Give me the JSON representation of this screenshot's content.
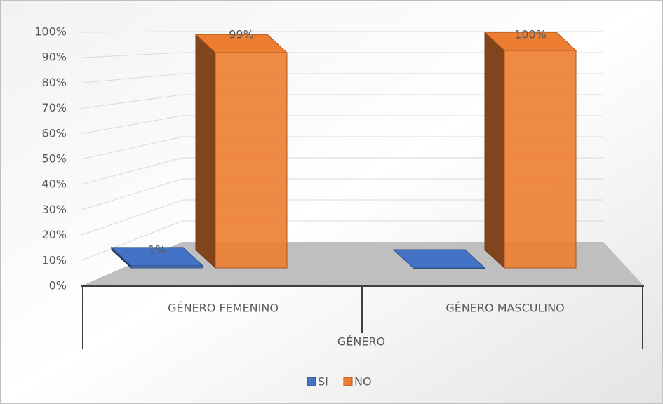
{
  "chart_data": {
    "type": "bar3d",
    "categories": [
      "GÉNERO FEMENINO",
      "GÉNERO MASCULINO"
    ],
    "x_label": "GÉNERO",
    "series": [
      {
        "name": "SI",
        "color": "#4472c4",
        "values": [
          1,
          0
        ],
        "value_labels": [
          "1%",
          null
        ]
      },
      {
        "name": "NO",
        "color": "#ed7d31",
        "values": [
          99,
          100
        ],
        "value_labels": [
          "99%",
          "100%"
        ]
      }
    ],
    "ylim": [
      0,
      100
    ],
    "yticks": [
      {
        "value": 0,
        "label": "0%"
      },
      {
        "value": 10,
        "label": "10%"
      },
      {
        "value": 20,
        "label": "20%"
      },
      {
        "value": 30,
        "label": "30%"
      },
      {
        "value": 40,
        "label": "40%"
      },
      {
        "value": 50,
        "label": "50%"
      },
      {
        "value": 60,
        "label": "60%"
      },
      {
        "value": 70,
        "label": "70%"
      },
      {
        "value": 80,
        "label": "80%"
      },
      {
        "value": 90,
        "label": "90%"
      },
      {
        "value": 100,
        "label": "100%"
      }
    ],
    "grid": true,
    "legend": "bottom"
  }
}
